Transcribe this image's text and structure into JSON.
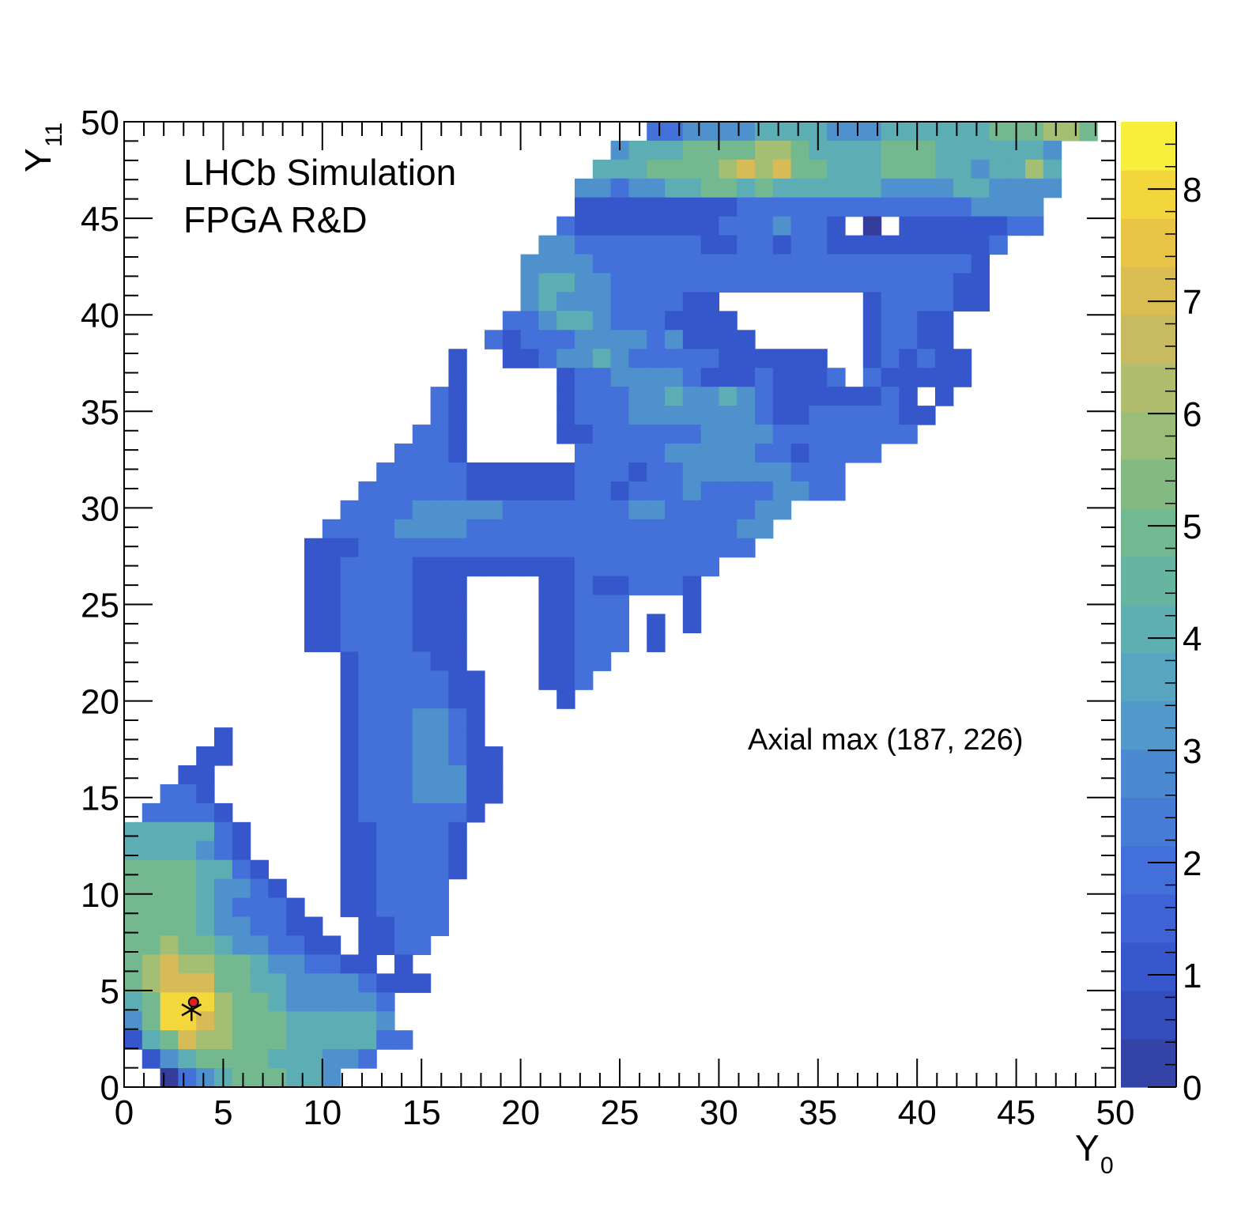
{
  "chart_data": {
    "type": "heatmap",
    "xlabel": "Y",
    "xlabel_subscript": "0",
    "ylabel": "Y",
    "ylabel_subscript": "11",
    "xlim": [
      0,
      50
    ],
    "ylim": [
      0,
      50
    ],
    "x_ticks": [
      "0",
      "5",
      "10",
      "15",
      "20",
      "25",
      "30",
      "35",
      "40",
      "45",
      "50"
    ],
    "y_ticks": [
      "0",
      "5",
      "10",
      "15",
      "20",
      "25",
      "30",
      "35",
      "40",
      "45",
      "50"
    ],
    "colorbar": {
      "zlim": [
        0,
        8.6
      ],
      "ticks": [
        "0",
        "1",
        "2",
        "3",
        "4",
        "5",
        "6",
        "7",
        "8"
      ]
    },
    "palette": "Parula-like (dark blue to yellow)",
    "bin_values_row_major_from_top": [
      "-----------------------------2233334444333444444555665-",
      "---------------------------3444555566544445554444443--",
      "--------------------------44455556767554445554434464--",
      "-------------------------332334455454444443333443333--",
      "-------------------------11111111122222222222223333---",
      "------------------------2111111112223221-0-11111122---",
      "-----------------------33222222211221221111111112----",
      "----------------------33332222222222222222222221-----",
      "----------------------34433222222222222222222211-----",
      "----------------------34333222211--------1222211------",
      "---------------------2234432221111-------12211--------",
      "--------------------212223333231111------12211--------",
      "------------------1--112334322222111111--121211-------",
      "------------------1-----1223333211121112-211111-------",
      "-----------------21-----12223343343211111121-1--------",
      "-----------------21-----122233333332112222211---------",
      "----------------221-----11222222333322222222----------",
      "---------------2221------22222333332212222-----------",
      "--------------22222111111222122333333222------------",
      "-------------222222111111221222322223322-------------",
      "------------2222333332222222332222233----------------",
      "-----------2222333322222222222222233-----------------",
      "----------1112222222222222222222222------------------",
      "----------11222211111111122222222--------------------",
      "----------112222111----112112221---------------------",
      "----------112222111----11222---1---------------------",
      "----------112222111----11222-1-1---------------------",
      "----------112222111----11222-1-----------------------",
      "------------1222211----1122--------------------------",
      "------------12222211---112---------------------------",
      "------------12222211----1----------------------------",
      "------------12223321---------------------------------",
      "-----1------12223321---------------------------------",
      "----11------122233211--------------------------------",
      "---11-------122233311--------------------------------",
      "--221-------122233311--------------------------------",
      "-22221------12222221---------------------------------",
      "4444421-----1122221----------------------------------",
      "4444321-----1122221----------------------------------",
      "55554421----1122221----------------------------------",
      "555543321---112222-----------------------------------",
      "5555432221--112222-----------------------------------",
      "55554332211--11222-----------------------------------",
      "556554332211-1122------------------------------------",
      "56766554332211-1-------------------------------------",
      "56777554433332111------------------------------------",
      "458886554333332-------------------------------------",
      "358876555444443-------------------------------------",
      "1457665554444422------------------------------------",
      "-1345555444332--------------------------------------",
      "--0234555443---------------------------------------"
    ]
  },
  "annotations": {
    "experiment": "LHCb Simulation",
    "subtitle": "FPGA R&D",
    "axial_max": "Axial max (187, 226)",
    "marker_point": {
      "x": 3.5,
      "y": 4.4
    },
    "star_point": {
      "x": 3.4,
      "y": 4.0
    }
  }
}
